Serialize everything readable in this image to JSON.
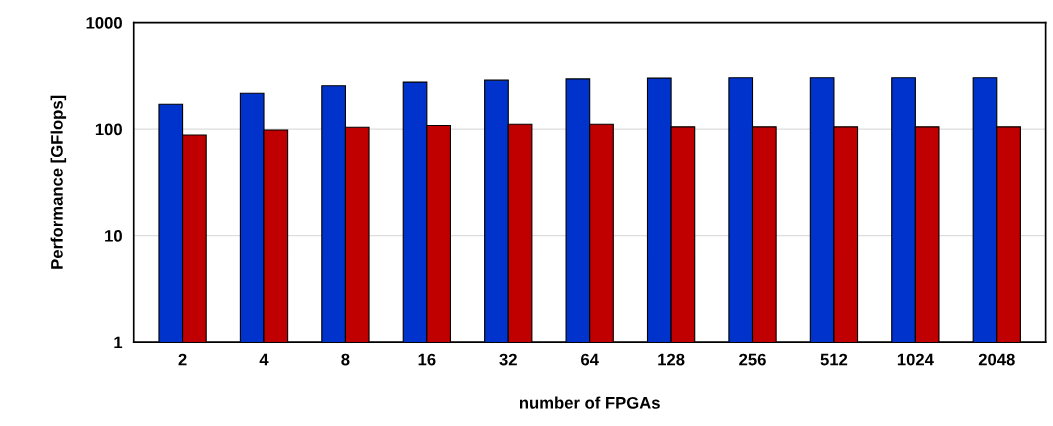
{
  "chart_data": {
    "type": "bar",
    "xlabel": "number of FPGAs",
    "ylabel": "Performance [GFlops]",
    "categories": [
      "2",
      "4",
      "8",
      "16",
      "32",
      "64",
      "128",
      "256",
      "512",
      "1024",
      "2048"
    ],
    "series": [
      {
        "color": "#0033cc",
        "values": [
          171,
          217,
          255,
          276,
          288,
          296,
          301,
          303,
          303,
          303,
          303
        ]
      },
      {
        "color": "#c00000",
        "values": [
          88,
          98,
          104,
          108,
          111,
          111,
          105,
          105,
          105,
          105,
          105
        ]
      }
    ],
    "log": "y",
    "ylim": [
      1,
      1000
    ],
    "yticks": [
      1,
      10,
      100,
      1000
    ],
    "grid": "y"
  }
}
